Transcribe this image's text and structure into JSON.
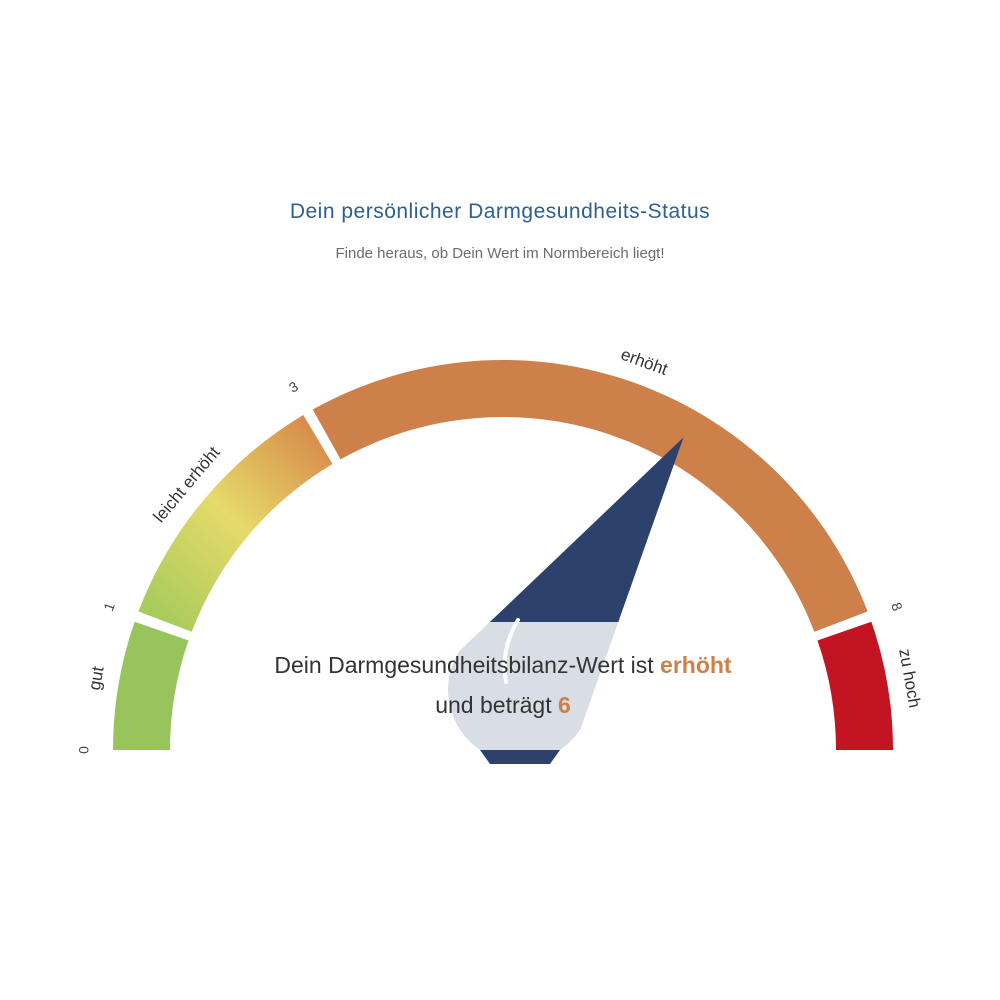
{
  "header": {
    "title": "Dein persönlicher Darmgesundheits-Status",
    "subtitle": "Finde heraus, ob Dein Wert im Normbereich liegt!"
  },
  "message": {
    "line1_prefix": "Dein Darmgesundheitsbilanz-Wert ist ",
    "status_word": "erhöht",
    "line2_prefix": "und beträgt ",
    "value": "6"
  },
  "chart_data": {
    "type": "gauge",
    "min": 0,
    "max": 9,
    "value": 6,
    "ticks": [
      "0",
      "1",
      "3",
      "8"
    ],
    "tick_values": [
      0,
      1,
      3,
      8
    ],
    "segments": [
      {
        "label": "gut",
        "from": 0,
        "to": 1,
        "color": "#98c45e"
      },
      {
        "label": "leicht erhöht",
        "from": 1,
        "to": 3,
        "color_start": "#a8cb5c",
        "color_mid": "#e6da6a",
        "color_end": "#d68a4a"
      },
      {
        "label": "erhöht",
        "from": 3,
        "to": 8,
        "color": "#cd8049"
      },
      {
        "label": "zu hoch",
        "from": 8,
        "to": 9,
        "color": "#c21421"
      }
    ],
    "needle_color": "#2c416b",
    "highlight_color": "#cd8049"
  }
}
